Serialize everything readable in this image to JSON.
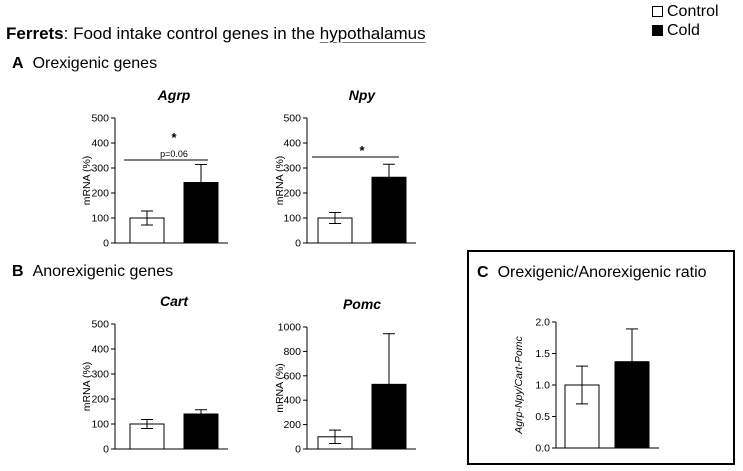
{
  "title": {
    "species": "Ferrets",
    "text_before": ": Food intake control genes in the ",
    "text_link": "hypothalamus"
  },
  "legend": [
    {
      "label": "Control",
      "color": "#ffffff"
    },
    {
      "label": "Cold",
      "color": "#000000"
    }
  ],
  "sections": {
    "A": {
      "letter": "A",
      "label": "Orexigenic genes"
    },
    "B": {
      "letter": "B",
      "label": "Anorexigenic genes"
    },
    "C": {
      "letter": "C",
      "label": "Orexigenic/Anorexigenic ratio"
    }
  },
  "colors": {
    "control_fill": "#ffffff",
    "cold_fill": "#000000",
    "axis": "#000000"
  },
  "chart_data": [
    {
      "type": "bar",
      "title": "Agrp",
      "ylabel": "mRNA (%)",
      "categories": [
        "Control",
        "Cold"
      ],
      "values": [
        100,
        242
      ],
      "errors": [
        28,
        72
      ],
      "ylim": [
        0,
        500
      ],
      "yticks": [
        0,
        100,
        200,
        300,
        400,
        500
      ],
      "annotations": [
        {
          "text": "*"
        },
        {
          "text": "p=0.06"
        }
      ]
    },
    {
      "type": "bar",
      "title": "Npy",
      "ylabel": "mRNA (%)",
      "categories": [
        "Control",
        "Cold"
      ],
      "values": [
        100,
        263
      ],
      "errors": [
        22,
        52
      ],
      "ylim": [
        0,
        500
      ],
      "yticks": [
        0,
        100,
        200,
        300,
        400,
        500
      ],
      "annotations": [
        {
          "text": "*"
        }
      ]
    },
    {
      "type": "bar",
      "title": "Cart",
      "ylabel": "mRNA (%)",
      "categories": [
        "Control",
        "Cold"
      ],
      "values": [
        100,
        140
      ],
      "errors": [
        18,
        17
      ],
      "ylim": [
        0,
        500
      ],
      "yticks": [
        0,
        100,
        200,
        300,
        400,
        500
      ],
      "annotations": []
    },
    {
      "type": "bar",
      "title": "Pomc",
      "ylabel": "mRNA (%)",
      "categories": [
        "Control",
        "Cold"
      ],
      "values": [
        100,
        530
      ],
      "errors": [
        55,
        415
      ],
      "ylim": [
        0,
        1000
      ],
      "yticks": [
        0,
        200,
        400,
        600,
        800,
        1000
      ],
      "annotations": []
    },
    {
      "type": "bar",
      "title": "",
      "ylabel": "Agrp-Npy/Cart-Pomc",
      "categories": [
        "Control",
        "Cold"
      ],
      "values": [
        1.0,
        1.37
      ],
      "errors": [
        0.3,
        0.52
      ],
      "ylim": [
        0,
        2.0
      ],
      "yticks": [
        "0.0",
        "0.5",
        "1.0",
        "1.5",
        "2.0"
      ],
      "annotations": []
    }
  ]
}
